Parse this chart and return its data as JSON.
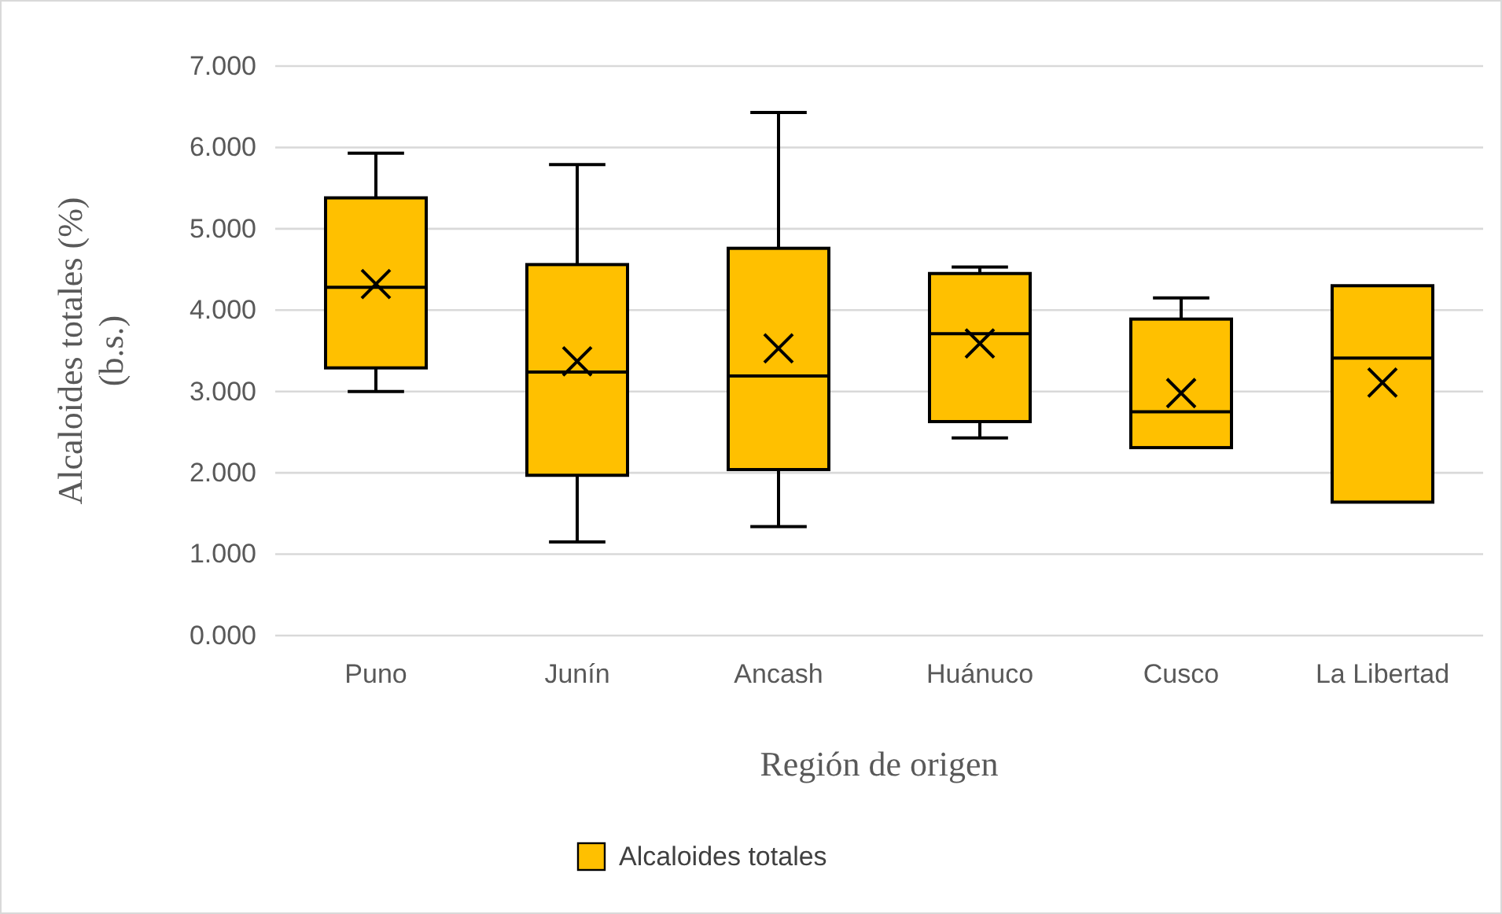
{
  "chart_data": {
    "type": "box",
    "xlabel": "Región de origen",
    "ylabel": "Alcaloides totales (%) (b.s.)",
    "categories": [
      "Puno",
      "Junín",
      "Ancash",
      "Huánuco",
      "Cusco",
      "La Libertad"
    ],
    "series": [
      {
        "name": "Alcaloides totales",
        "color": "#ffc000",
        "boxes": [
          {
            "low": 3.0,
            "q1": 3.29,
            "median": 4.28,
            "q3": 5.38,
            "high": 5.93,
            "mean": 4.32
          },
          {
            "low": 1.15,
            "q1": 1.97,
            "median": 3.24,
            "q3": 4.56,
            "high": 5.79,
            "mean": 3.37
          },
          {
            "low": 1.34,
            "q1": 2.04,
            "median": 3.19,
            "q3": 4.76,
            "high": 6.43,
            "mean": 3.53
          },
          {
            "low": 2.43,
            "q1": 2.63,
            "median": 3.71,
            "q3": 4.45,
            "high": 4.53,
            "mean": 3.59
          },
          {
            "low": 2.31,
            "q1": 2.31,
            "median": 2.75,
            "q3": 3.89,
            "high": 4.15,
            "mean": 2.98
          },
          {
            "low": 1.64,
            "q1": 1.64,
            "median": 3.41,
            "q3": 4.3,
            "high": 4.3,
            "mean": 3.11
          }
        ]
      }
    ],
    "ylim": [
      0,
      7
    ],
    "yticks": [
      {
        "value": 0,
        "label": "0.000"
      },
      {
        "value": 1,
        "label": "1.000"
      },
      {
        "value": 2,
        "label": "2.000"
      },
      {
        "value": 3,
        "label": "3.000"
      },
      {
        "value": 4,
        "label": "4.000"
      },
      {
        "value": 5,
        "label": "5.000"
      },
      {
        "value": 6,
        "label": "6.000"
      },
      {
        "value": 7,
        "label": "7.000"
      }
    ],
    "grid": "y",
    "legend": "bottom",
    "marker": "cross"
  }
}
